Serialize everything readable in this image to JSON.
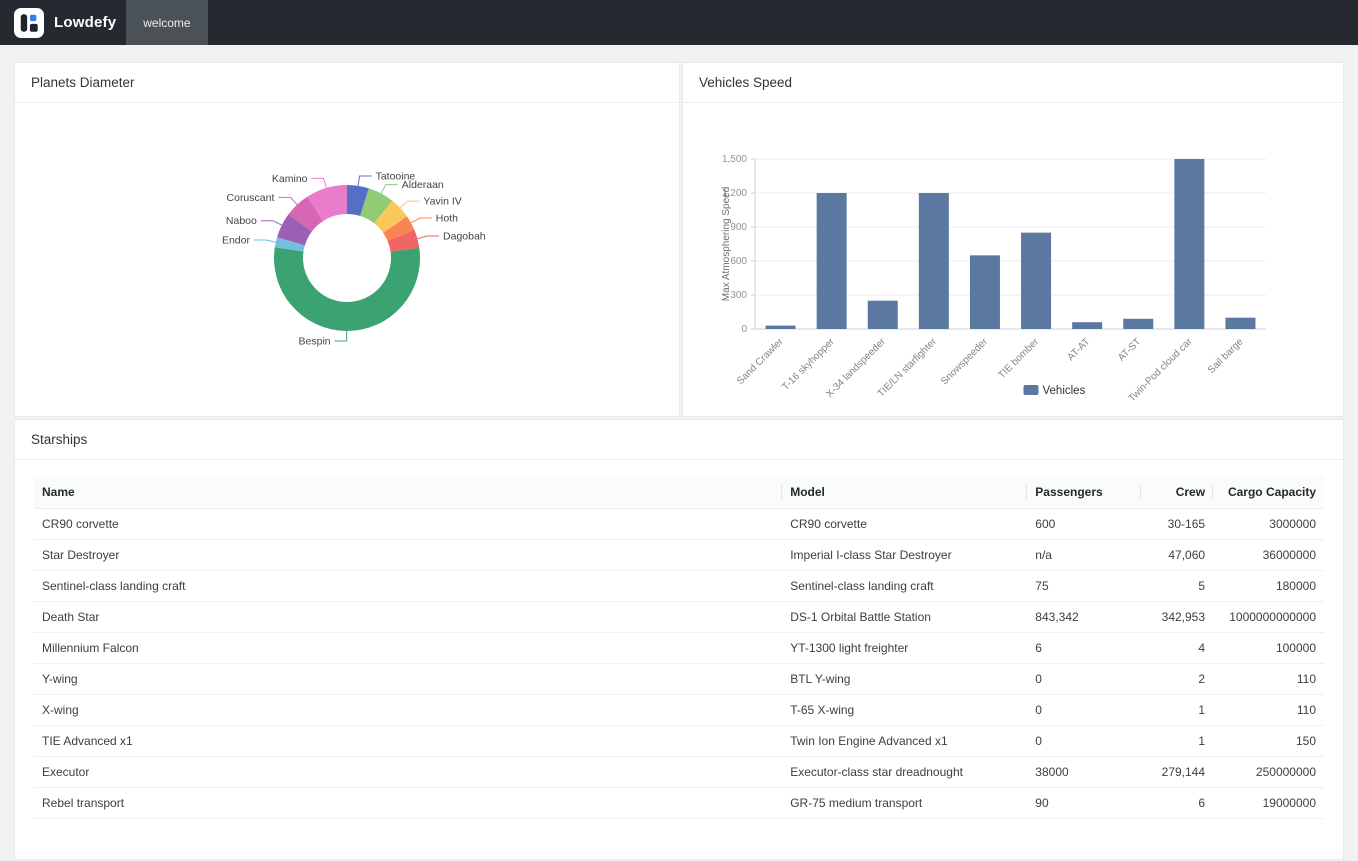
{
  "theme": {
    "header_bg": "#252a31",
    "tab_bg": "#4a5157",
    "brand_blue": "#2f80ed",
    "page_bg": "#f0f2f4",
    "bar_color": "#5b78a0"
  },
  "header": {
    "brand": "Lowdefy",
    "tab": "welcome"
  },
  "chart_data": [
    {
      "type": "pie",
      "title": "Planets Diameter",
      "donut": true,
      "labels": [
        "Tatooine",
        "Alderaan",
        "Yavin IV",
        "Hoth",
        "Dagobah",
        "Bespin",
        "Endor",
        "Naboo",
        "Coruscant",
        "Kamino"
      ],
      "values": [
        10465,
        12500,
        10200,
        7200,
        8900,
        118000,
        4900,
        12120,
        12240,
        19720
      ],
      "colors": [
        "#5470c6",
        "#91cc75",
        "#fac858",
        "#fc8452",
        "#ee6666",
        "#3ba272",
        "#73c0de",
        "#9a60b4",
        "#d667b5",
        "#ea7ccc"
      ],
      "legend_position": "none"
    },
    {
      "type": "bar",
      "title": "Vehicles Speed",
      "categories": [
        "Sand Crawler",
        "T-16 skyhopper",
        "X-34 landspeeder",
        "TIE/LN starfighter",
        "Snowspeeder",
        "TIE bomber",
        "AT-AT",
        "AT-ST",
        "Twin-Pod cloud car",
        "Sail barge"
      ],
      "series": [
        {
          "name": "Vehicles",
          "values": [
            30,
            1200,
            250,
            1200,
            650,
            850,
            60,
            90,
            1500,
            100
          ]
        }
      ],
      "xlabel": "",
      "ylabel": "Max Atmosphering Speed",
      "ylim": [
        0,
        1500
      ],
      "yticks": [
        0,
        300,
        600,
        900,
        1200,
        1500
      ],
      "bar_color": "#5b78a0",
      "grid": true,
      "legend_position": "bottom"
    }
  ],
  "table_card": {
    "title": "Starships",
    "columns": [
      {
        "label": "Name",
        "align": "left"
      },
      {
        "label": "Model",
        "align": "left"
      },
      {
        "label": "Passengers",
        "align": "left"
      },
      {
        "label": "Crew",
        "align": "right"
      },
      {
        "label": "Cargo Capacity",
        "align": "right"
      }
    ],
    "rows": [
      [
        "CR90 corvette",
        "CR90 corvette",
        "600",
        "30-165",
        "3000000"
      ],
      [
        "Star Destroyer",
        "Imperial I-class Star Destroyer",
        "n/a",
        "47,060",
        "36000000"
      ],
      [
        "Sentinel-class landing craft",
        "Sentinel-class landing craft",
        "75",
        "5",
        "180000"
      ],
      [
        "Death Star",
        "DS-1 Orbital Battle Station",
        "843,342",
        "342,953",
        "1000000000000"
      ],
      [
        "Millennium Falcon",
        "YT-1300 light freighter",
        "6",
        "4",
        "100000"
      ],
      [
        "Y-wing",
        "BTL Y-wing",
        "0",
        "2",
        "110"
      ],
      [
        "X-wing",
        "T-65 X-wing",
        "0",
        "1",
        "110"
      ],
      [
        "TIE Advanced x1",
        "Twin Ion Engine Advanced x1",
        "0",
        "1",
        "150"
      ],
      [
        "Executor",
        "Executor-class star dreadnought",
        "38000",
        "279,144",
        "250000000"
      ],
      [
        "Rebel transport",
        "GR-75 medium transport",
        "90",
        "6",
        "19000000"
      ]
    ]
  }
}
